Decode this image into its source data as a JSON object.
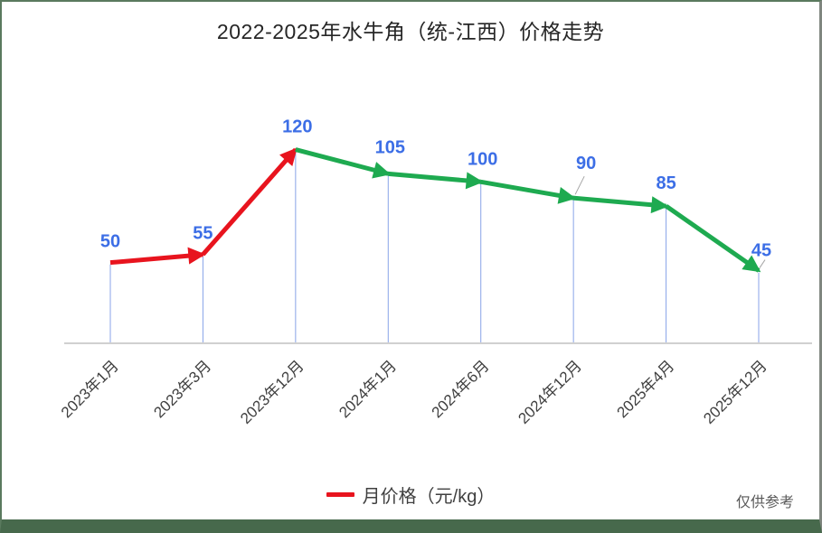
{
  "chart_data": {
    "type": "line",
    "title": "2022-2025年水牛角（统-江西）价格走势",
    "xlabel": "",
    "ylabel": "",
    "ylim": [
      0,
      130
    ],
    "grid": false,
    "legend_position": "bottom-center",
    "categories": [
      "2023年1月",
      "2023年3月",
      "2023年12月",
      "2024年1月",
      "2024年6月",
      "2024年12月",
      "2025年4月",
      "2025年12月"
    ],
    "series": [
      {
        "name": "月价格（元/kg）",
        "values": [
          50,
          55,
          120,
          105,
          100,
          90,
          85,
          45
        ]
      }
    ],
    "point_labels": [
      "50",
      "55",
      "120",
      "105",
      "100",
      "90",
      "85",
      "45"
    ],
    "colors": {
      "rise_segment": "#e8141e",
      "fall_segment": "#1eaa50",
      "value_label": "#3c6ee6",
      "drop_line": "#88a3e8",
      "axis_line": "#d0d0d0",
      "leader_line": "#a6a6a6",
      "tick_label": "#3f3f3f"
    }
  },
  "legend": {
    "label": "月价格（元/kg）",
    "swatch_color": "#e8141e"
  },
  "footnote": "仅供参考"
}
